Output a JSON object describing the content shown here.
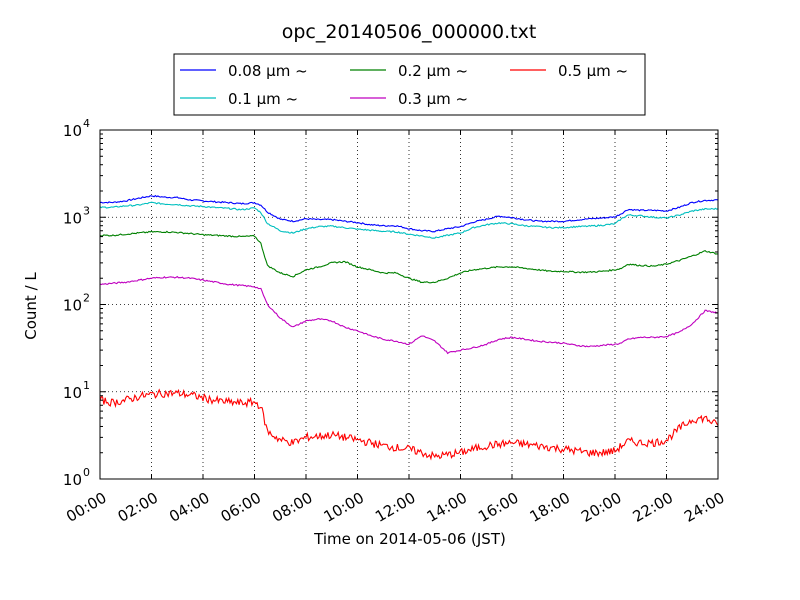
{
  "chart_data": {
    "type": "line",
    "title": "opc_20140506_000000.txt",
    "xlabel": "Time on 2014-05-06 (JST)",
    "ylabel": "Count / L",
    "yscale": "log",
    "ylim": [
      1,
      10000
    ],
    "xlim": [
      "00:00",
      "24:00"
    ],
    "grid": true,
    "legend_position": "top-center",
    "x_ticks": [
      "00:00",
      "02:00",
      "04:00",
      "06:00",
      "08:00",
      "10:00",
      "12:00",
      "14:00",
      "16:00",
      "18:00",
      "20:00",
      "22:00",
      "24:00"
    ],
    "y_ticks": [
      {
        "value": 1,
        "base": "10",
        "exp": "0"
      },
      {
        "value": 10,
        "base": "10",
        "exp": "1"
      },
      {
        "value": 100,
        "base": "10",
        "exp": "2"
      },
      {
        "value": 1000,
        "base": "10",
        "exp": "3"
      },
      {
        "value": 10000,
        "base": "10",
        "exp": "4"
      }
    ],
    "x": [
      "00:00",
      "00:30",
      "01:00",
      "01:30",
      "02:00",
      "02:30",
      "03:00",
      "03:30",
      "04:00",
      "04:30",
      "05:00",
      "05:30",
      "06:00",
      "06:15",
      "06:30",
      "07:00",
      "07:30",
      "08:00",
      "08:30",
      "09:00",
      "09:30",
      "10:00",
      "10:30",
      "11:00",
      "11:30",
      "12:00",
      "12:30",
      "13:00",
      "13:30",
      "14:00",
      "14:30",
      "15:00",
      "15:30",
      "16:00",
      "16:30",
      "17:00",
      "17:30",
      "18:00",
      "18:30",
      "19:00",
      "19:30",
      "20:00",
      "20:15",
      "20:30",
      "21:00",
      "21:30",
      "22:00",
      "22:30",
      "23:00",
      "23:30",
      "24:00"
    ],
    "series": [
      {
        "name": "0.08 μm ~",
        "color": "#0000ff",
        "values": [
          1480,
          1480,
          1540,
          1650,
          1760,
          1700,
          1680,
          1580,
          1540,
          1500,
          1470,
          1430,
          1470,
          1380,
          1150,
          950,
          900,
          960,
          940,
          940,
          900,
          870,
          820,
          800,
          800,
          740,
          700,
          690,
          740,
          780,
          880,
          950,
          1030,
          990,
          940,
          900,
          900,
          900,
          930,
          960,
          980,
          1010,
          1100,
          1230,
          1200,
          1200,
          1180,
          1300,
          1480,
          1560,
          1580
        ]
      },
      {
        "name": "0.1 μm ~",
        "color": "#00bfbf",
        "values": [
          1300,
          1300,
          1350,
          1380,
          1470,
          1420,
          1400,
          1350,
          1330,
          1290,
          1260,
          1220,
          1280,
          1130,
          850,
          700,
          660,
          740,
          780,
          790,
          760,
          730,
          710,
          690,
          680,
          640,
          610,
          580,
          620,
          660,
          760,
          820,
          860,
          840,
          800,
          780,
          760,
          760,
          780,
          790,
          810,
          840,
          960,
          1060,
          1040,
          1000,
          980,
          1060,
          1180,
          1240,
          1250
        ]
      },
      {
        "name": "0.2 μm ~",
        "color": "#008000",
        "values": [
          620,
          620,
          640,
          660,
          680,
          680,
          670,
          650,
          630,
          620,
          610,
          600,
          610,
          500,
          280,
          230,
          210,
          250,
          270,
          300,
          310,
          270,
          250,
          230,
          230,
          200,
          180,
          180,
          200,
          230,
          250,
          260,
          270,
          270,
          260,
          250,
          240,
          240,
          235,
          235,
          240,
          250,
          260,
          290,
          280,
          275,
          290,
          320,
          360,
          410,
          380
        ]
      },
      {
        "name": "0.3 μm ~",
        "color": "#bf00bf",
        "values": [
          170,
          175,
          180,
          190,
          200,
          205,
          205,
          200,
          190,
          180,
          170,
          165,
          160,
          150,
          100,
          70,
          55,
          65,
          68,
          65,
          55,
          50,
          44,
          40,
          38,
          35,
          44,
          38,
          28,
          30,
          32,
          35,
          40,
          42,
          40,
          38,
          37,
          36,
          34,
          33,
          34,
          35,
          36,
          40,
          42,
          42,
          43,
          48,
          60,
          85,
          80
        ]
      },
      {
        "name": "0.5 μm ~",
        "color": "#ff0000",
        "values": [
          8.0,
          7.5,
          8.0,
          8.8,
          9.3,
          9.6,
          9.6,
          9.2,
          8.5,
          7.9,
          7.6,
          7.4,
          7.6,
          6.8,
          3.5,
          2.8,
          2.6,
          3.0,
          3.1,
          3.2,
          3.0,
          2.8,
          2.6,
          2.4,
          2.3,
          2.2,
          2.0,
          1.8,
          1.9,
          2.0,
          2.2,
          2.4,
          2.5,
          2.6,
          2.5,
          2.4,
          2.3,
          2.2,
          2.1,
          2.0,
          2.0,
          2.1,
          2.4,
          2.7,
          2.6,
          2.6,
          2.8,
          3.8,
          4.8,
          5.0,
          4.1
        ]
      }
    ]
  }
}
